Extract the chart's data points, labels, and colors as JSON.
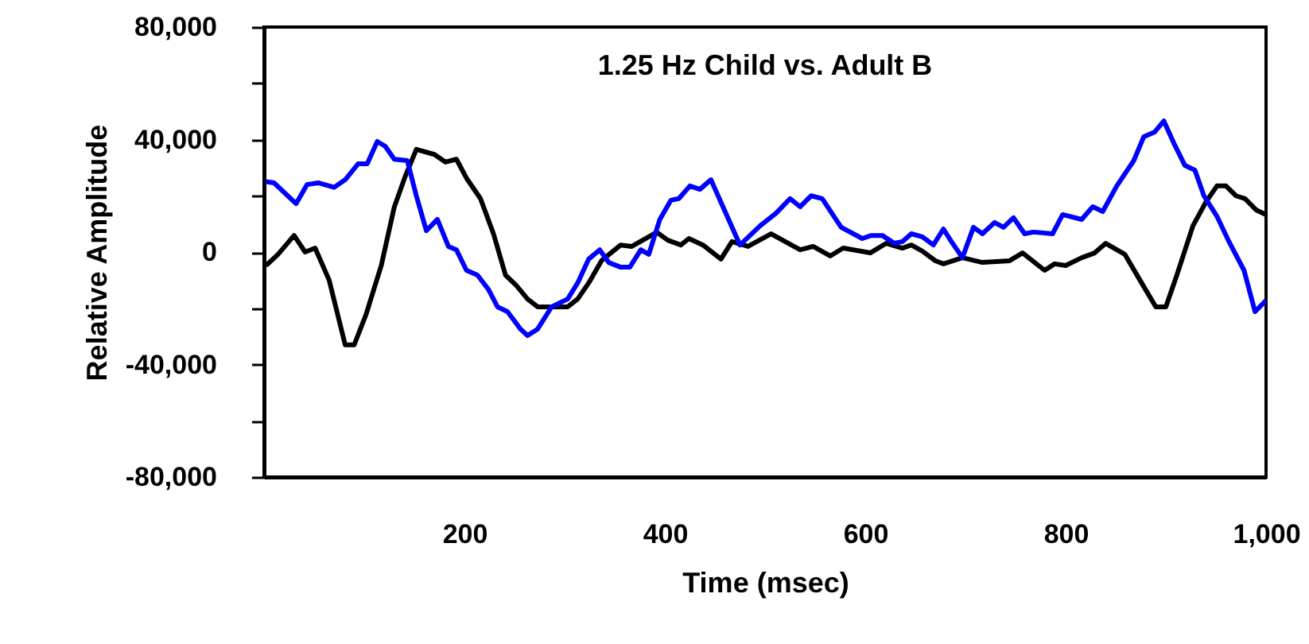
{
  "chart_data": {
    "type": "line",
    "title": "1.25 Hz Child vs. Adult B",
    "xlabel": "Time (msec)",
    "ylabel": "Relative Amplitude",
    "xlim": [
      0,
      1000
    ],
    "xticks": [
      200,
      400,
      600,
      800,
      {
        "value": 1000,
        "label": "1,000"
      }
    ],
    "ylim": [
      -80000,
      80000
    ],
    "yticks": [
      {
        "value": -80000,
        "label": "-80,000"
      },
      {
        "value": -60000,
        "label": null
      },
      {
        "value": -40000,
        "label": "-40,000"
      },
      {
        "value": -20000,
        "label": null
      },
      0,
      {
        "value": 20000,
        "label": null
      },
      {
        "value": 40000,
        "label": "40,000"
      },
      {
        "value": 60000,
        "label": null
      },
      {
        "value": 80000,
        "label": "80,000"
      }
    ],
    "grid": false,
    "line_style": "solid",
    "marker": "none",
    "series": [
      {
        "color": "#000000",
        "x": [
          2,
          14,
          30,
          41,
          51,
          65,
          81,
          90,
          102,
          117,
          130,
          141,
          152,
          170,
          181,
          192,
          202,
          216,
          229,
          241,
          252,
          263,
          273,
          303,
          313,
          324,
          337,
          356,
          367,
          392,
          403,
          416,
          424,
          438,
          456,
          467,
          483,
          506,
          535,
          548,
          565,
          578,
          605,
          621,
          637,
          646,
          657,
          670,
          678,
          697,
          717,
          744,
          757,
          779,
          789,
          800,
          816,
          829,
          840,
          859,
          875,
          890,
          900,
          911,
          927,
          940,
          951,
          960,
          970,
          979,
          990,
          1000
        ],
        "values": [
          -4800,
          -800,
          5900,
          0,
          1400,
          -10000,
          -33000,
          -33000,
          -22000,
          -4800,
          16000,
          27000,
          36500,
          34700,
          32000,
          33000,
          26300,
          19000,
          6500,
          -8200,
          -12000,
          -16700,
          -19500,
          -19500,
          -16700,
          -11000,
          -3000,
          2500,
          2000,
          7000,
          4200,
          2500,
          4800,
          2500,
          -2500,
          3700,
          2000,
          6500,
          800,
          2000,
          -1400,
          1400,
          -300,
          3100,
          1400,
          2500,
          300,
          -3100,
          -4200,
          -2000,
          -3700,
          -3100,
          -300,
          -6500,
          -4200,
          -4800,
          -2000,
          -300,
          3100,
          -800,
          -10500,
          -19500,
          -19500,
          -8200,
          9300,
          17800,
          23500,
          23500,
          20000,
          19000,
          15000,
          13300
        ]
      },
      {
        "color": "#0000ff",
        "x": [
          2,
          10,
          32,
          43,
          54,
          70,
          81,
          94,
          103,
          113,
          121,
          130,
          143,
          152,
          162,
          173,
          184,
          192,
          202,
          213,
          224,
          233,
          243,
          256,
          263,
          273,
          287,
          303,
          313,
          324,
          335,
          344,
          356,
          365,
          376,
          384,
          395,
          406,
          414,
          425,
          435,
          446,
          475,
          495,
          511,
          525,
          535,
          546,
          557,
          576,
          597,
          606,
          617,
          629,
          637,
          646,
          657,
          668,
          678,
          686,
          697,
          708,
          717,
          729,
          738,
          748,
          759,
          768,
          787,
          797,
          816,
          827,
          837,
          851,
          868,
          878,
          889,
          898,
          908,
          919,
          929,
          938,
          951,
          963,
          978,
          989,
          1000
        ],
        "values": [
          25000,
          24600,
          17200,
          24000,
          24600,
          23000,
          25700,
          31400,
          31400,
          39300,
          37600,
          33000,
          32500,
          20000,
          7600,
          11600,
          2000,
          800,
          -6500,
          -8200,
          -13300,
          -19500,
          -21200,
          -27400,
          -29700,
          -27400,
          -19500,
          -16700,
          -11000,
          -2500,
          800,
          -3700,
          -5400,
          -5400,
          800,
          -800,
          11600,
          18400,
          19000,
          23500,
          22300,
          25700,
          2500,
          9300,
          13800,
          19000,
          16100,
          20000,
          19000,
          8800,
          4800,
          5900,
          5900,
          3100,
          3700,
          6500,
          5400,
          2500,
          8200,
          3700,
          -2000,
          8800,
          6500,
          10500,
          8800,
          12200,
          6500,
          7100,
          6500,
          13300,
          11600,
          16100,
          14400,
          23500,
          32500,
          41000,
          42700,
          46600,
          38700,
          30800,
          29100,
          20000,
          12700,
          3700,
          -6500,
          -21200,
          -17200
        ]
      }
    ]
  }
}
